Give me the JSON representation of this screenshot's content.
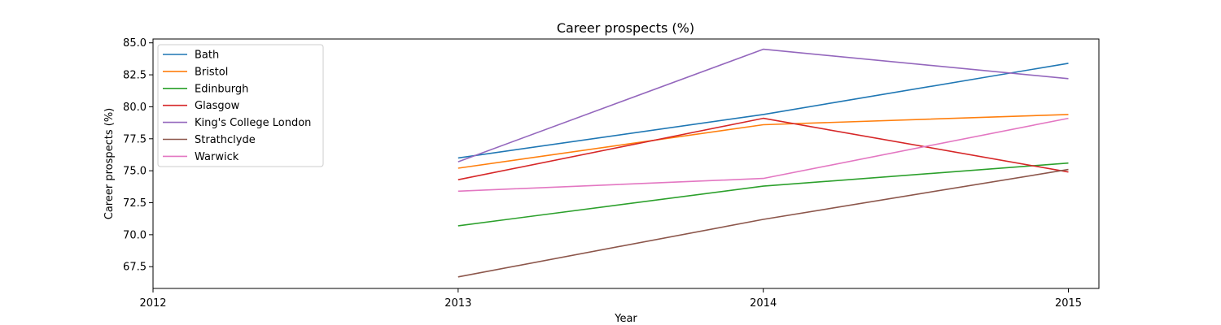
{
  "chart_data": {
    "type": "line",
    "title": "Career prospects (%)",
    "xlabel": "Year",
    "ylabel": "Career prospects (%)",
    "x": [
      2013,
      2014,
      2015
    ],
    "xlim": [
      2012,
      2015.1
    ],
    "ylim": [
      65.8,
      85.3
    ],
    "xticks": [
      2012,
      2013,
      2014,
      2015
    ],
    "yticks": [
      67.5,
      70.0,
      72.5,
      75.0,
      77.5,
      80.0,
      82.5,
      85.0
    ],
    "ytick_labels": [
      "67.5",
      "70.0",
      "72.5",
      "75.0",
      "77.5",
      "80.0",
      "82.5",
      "85.0"
    ],
    "grid": false,
    "legend_position": "top-left",
    "series": [
      {
        "name": "Bath",
        "color": "#1f77b4",
        "values": [
          76.0,
          79.4,
          83.4
        ]
      },
      {
        "name": "Bristol",
        "color": "#ff7f0e",
        "values": [
          75.2,
          78.6,
          79.4
        ]
      },
      {
        "name": "Edinburgh",
        "color": "#2ca02c",
        "values": [
          70.7,
          73.8,
          75.6
        ]
      },
      {
        "name": "Glasgow",
        "color": "#d62728",
        "values": [
          74.3,
          79.1,
          74.9
        ]
      },
      {
        "name": "King's College London",
        "color": "#9467bd",
        "values": [
          75.7,
          84.5,
          82.2
        ]
      },
      {
        "name": "Strathclyde",
        "color": "#8c564b",
        "values": [
          66.7,
          71.2,
          75.1
        ]
      },
      {
        "name": "Warwick",
        "color": "#e377c2",
        "values": [
          73.4,
          74.4,
          79.1
        ]
      }
    ]
  }
}
